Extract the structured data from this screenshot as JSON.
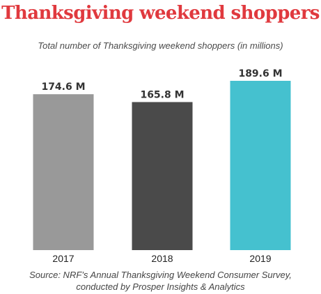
{
  "colors": {
    "title": "#E0393E",
    "text": "#333333",
    "bars": [
      "#999999",
      "#4A4A4A",
      "#45C1CF"
    ]
  },
  "chart_data": {
    "type": "bar",
    "title": "Thanksgiving weekend shoppers",
    "subtitle": "Total number of Thanksgiving weekend shoppers (in millions)",
    "categories": [
      "2017",
      "2018",
      "2019"
    ],
    "values": [
      174.6,
      165.8,
      189.6
    ],
    "value_labels": [
      "174.6 M",
      "165.8 M",
      "189.6 M"
    ],
    "grid": false,
    "legend": "none"
  },
  "source": {
    "line1": "Source: NRF’s Annual Thanksgiving Weekend Consumer Survey,",
    "line2": "conducted by Prosper Insights & Analytics"
  }
}
